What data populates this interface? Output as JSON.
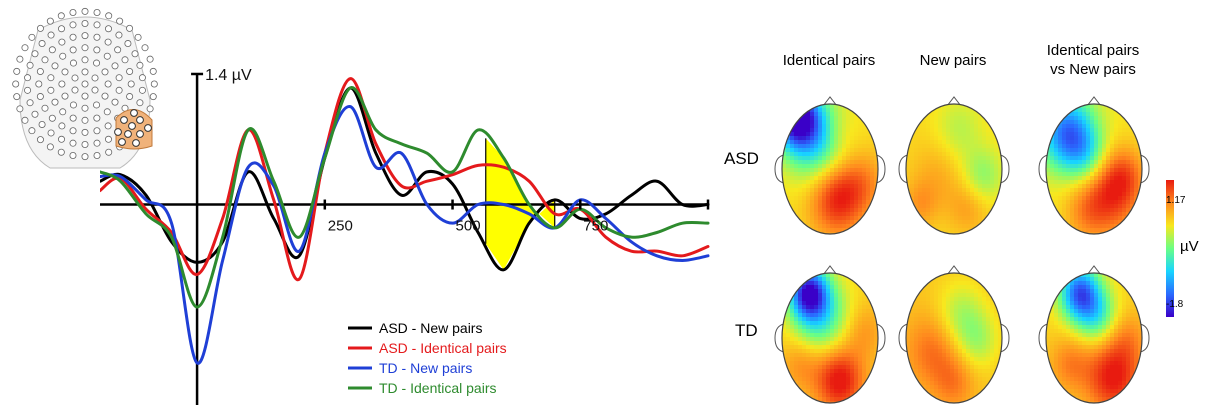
{
  "colors": {
    "asd_new": "#000000",
    "asd_identical": "#e41a1c",
    "td_new": "#1f3fd6",
    "td_identical": "#2e8b2e",
    "highlight": "#ffff00",
    "electrode_cluster": "#f0b27a"
  },
  "chart_data": [
    {
      "type": "line",
      "title": "",
      "xlabel": "",
      "ylabel": "",
      "y_scale_label": "1.4 µV",
      "y_scale_value": 1.4,
      "x_ticks": [
        250,
        500,
        750,
        1000
      ],
      "x_tick_labels": [
        "250",
        "500",
        "750",
        ""
      ],
      "xlim": [
        -190,
        1000
      ],
      "ylim": [
        -2.15,
        1.55
      ],
      "highlight_window": [
        565,
        700
      ],
      "grid": false,
      "legend_position": "bottom-center",
      "x": [
        -190,
        -150,
        -100,
        -50,
        0,
        50,
        100,
        150,
        200,
        250,
        300,
        350,
        400,
        450,
        500,
        550,
        600,
        650,
        700,
        750,
        800,
        850,
        900,
        950,
        1000
      ],
      "series": [
        {
          "name": "ASD - New pairs",
          "color_key": "asd_new",
          "values": [
            0.25,
            0.32,
            0.1,
            -0.4,
            -0.62,
            -0.4,
            0.35,
            -0.15,
            -0.55,
            0.5,
            1.25,
            0.55,
            0.1,
            0.35,
            0.22,
            -0.3,
            -0.7,
            -0.2,
            0.05,
            -0.15,
            -0.1,
            0.1,
            0.25,
            0.0,
            0.0
          ]
        },
        {
          "name": "ASD - Identical pairs",
          "color_key": "asd_identical",
          "values": [
            0.15,
            0.28,
            -0.05,
            -0.3,
            -0.75,
            -0.15,
            0.8,
            0.05,
            -0.8,
            0.55,
            1.35,
            0.65,
            0.2,
            0.25,
            0.32,
            0.42,
            0.4,
            0.25,
            -0.1,
            -0.05,
            -0.35,
            -0.5,
            -0.5,
            -0.55,
            -0.45
          ]
        },
        {
          "name": "TD - New pairs",
          "color_key": "td_new",
          "values": [
            0.3,
            0.3,
            0.05,
            -0.2,
            -1.7,
            -0.6,
            0.4,
            0.2,
            -0.5,
            0.55,
            1.05,
            0.4,
            0.55,
            0.0,
            -0.2,
            0.0,
            0.0,
            -0.1,
            -0.25,
            0.05,
            -0.15,
            -0.4,
            -0.55,
            -0.6,
            -0.55
          ]
        },
        {
          "name": "TD - Identical pairs",
          "color_key": "td_identical",
          "values": [
            0.35,
            0.25,
            -0.1,
            -0.35,
            -1.1,
            -0.35,
            0.8,
            0.25,
            -0.35,
            0.5,
            1.25,
            0.8,
            0.65,
            0.55,
            0.35,
            0.8,
            0.5,
            0.0,
            -0.25,
            -0.05,
            -0.25,
            -0.35,
            -0.3,
            -0.2,
            -0.2
          ]
        }
      ]
    },
    {
      "type": "heatmap",
      "title": "",
      "column_labels": [
        "Identical pairs",
        "New pairs",
        "Identical pairs\nvs New pairs"
      ],
      "row_labels": [
        "ASD",
        "TD"
      ],
      "colorbar_unit": "µV",
      "colorbar_max_label": "1.17",
      "colorbar_min_label": "-1.8",
      "colorbar_range": [
        -1.8,
        1.17
      ],
      "colorscale": [
        "#3a00c8",
        "#2a6bff",
        "#18d5ff",
        "#6aff84",
        "#f8e81e",
        "#ff8a1e",
        "#e81b10"
      ],
      "maps": [
        {
          "row": "ASD",
          "column": "Identical pairs",
          "base": 0.25,
          "blobs": [
            [
              -0.7,
              -0.8,
              0.32,
              -2.0
            ],
            [
              -0.3,
              -0.45,
              0.45,
              -1.0
            ],
            [
              0.15,
              0.45,
              0.4,
              0.9
            ],
            [
              0.7,
              0.2,
              0.35,
              0.35
            ],
            [
              0.2,
              -0.55,
              0.25,
              0.2
            ]
          ]
        },
        {
          "row": "ASD",
          "column": "New pairs",
          "base": 0.25,
          "blobs": [
            [
              -0.35,
              0.1,
              0.4,
              0.25
            ],
            [
              0.6,
              0.1,
              0.3,
              -0.45
            ],
            [
              0.1,
              -0.6,
              0.35,
              -0.3
            ],
            [
              -0.7,
              0.55,
              0.25,
              0.3
            ],
            [
              0.3,
              0.6,
              0.3,
              0.3
            ]
          ]
        },
        {
          "row": "ASD",
          "column": "Identical pairs vs New pairs",
          "base": 0.2,
          "blobs": [
            [
              -0.55,
              -0.55,
              0.4,
              -1.5
            ],
            [
              -0.15,
              -0.2,
              0.3,
              -0.6
            ],
            [
              0.3,
              0.4,
              0.45,
              0.85
            ],
            [
              0.65,
              0.1,
              0.3,
              0.4
            ],
            [
              -0.2,
              0.7,
              0.3,
              0.25
            ]
          ]
        },
        {
          "row": "TD",
          "column": "Identical pairs",
          "base": 0.3,
          "blobs": [
            [
              -0.45,
              -0.7,
              0.28,
              -1.8
            ],
            [
              -0.2,
              -0.35,
              0.4,
              -0.9
            ],
            [
              0.2,
              0.65,
              0.35,
              0.95
            ],
            [
              0.7,
              -0.1,
              0.3,
              0.3
            ],
            [
              -0.6,
              0.4,
              0.3,
              0.35
            ]
          ]
        },
        {
          "row": "TD",
          "column": "New pairs",
          "base": 0.35,
          "blobs": [
            [
              0.15,
              -0.35,
              0.35,
              -0.45
            ],
            [
              0.5,
              0.05,
              0.3,
              -0.4
            ],
            [
              -0.45,
              0.2,
              0.4,
              0.45
            ],
            [
              0.0,
              0.7,
              0.3,
              0.35
            ]
          ]
        },
        {
          "row": "TD",
          "column": "Identical pairs vs New pairs",
          "base": 0.3,
          "blobs": [
            [
              -0.3,
              -0.7,
              0.3,
              -1.6
            ],
            [
              0.05,
              -0.35,
              0.3,
              -0.8
            ],
            [
              0.4,
              0.6,
              0.4,
              0.9
            ],
            [
              -0.5,
              0.4,
              0.3,
              0.4
            ],
            [
              0.7,
              0.0,
              0.3,
              0.3
            ]
          ]
        }
      ]
    }
  ],
  "sensor_map": {
    "title": "",
    "electrode_count": 128,
    "highlighted_count": 10
  }
}
